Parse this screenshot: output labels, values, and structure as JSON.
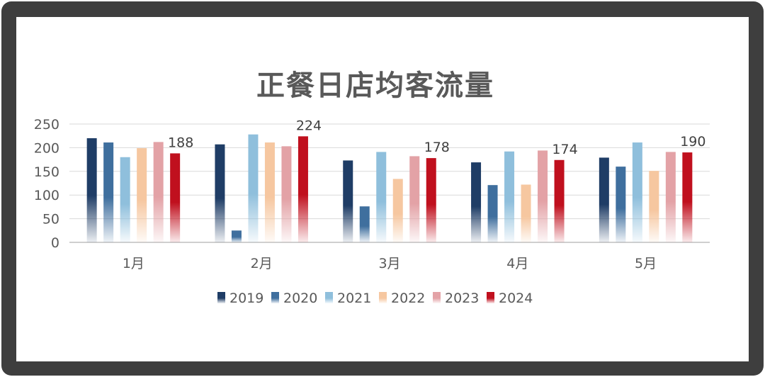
{
  "chart_data": {
    "type": "bar",
    "title": "正餐日店均客流量",
    "categories": [
      "1月",
      "2月",
      "3月",
      "4月",
      "5月"
    ],
    "series": [
      {
        "name": "2019",
        "values": [
          220,
          207,
          173,
          169,
          179
        ],
        "color": "#1f3d66"
      },
      {
        "name": "2020",
        "values": [
          211,
          25,
          76,
          121,
          160
        ],
        "color": "#3f6f9e"
      },
      {
        "name": "2021",
        "values": [
          180,
          228,
          191,
          192,
          211
        ],
        "color": "#8fbfdc"
      },
      {
        "name": "2022",
        "values": [
          199,
          211,
          134,
          122,
          151
        ],
        "color": "#f6c7a0"
      },
      {
        "name": "2023",
        "values": [
          212,
          203,
          182,
          194,
          191
        ],
        "color": "#e3a2a6"
      },
      {
        "name": "2024",
        "values": [
          188,
          224,
          178,
          174,
          190
        ],
        "color": "#c0101e"
      }
    ],
    "data_labels": {
      "series": "2024",
      "values": [
        "188",
        "224",
        "178",
        "174",
        "190"
      ]
    },
    "y_ticks": [
      "0",
      "50",
      "100",
      "150",
      "200",
      "250"
    ],
    "ylim": [
      0,
      250
    ],
    "grid": true,
    "legend_position": "bottom"
  }
}
